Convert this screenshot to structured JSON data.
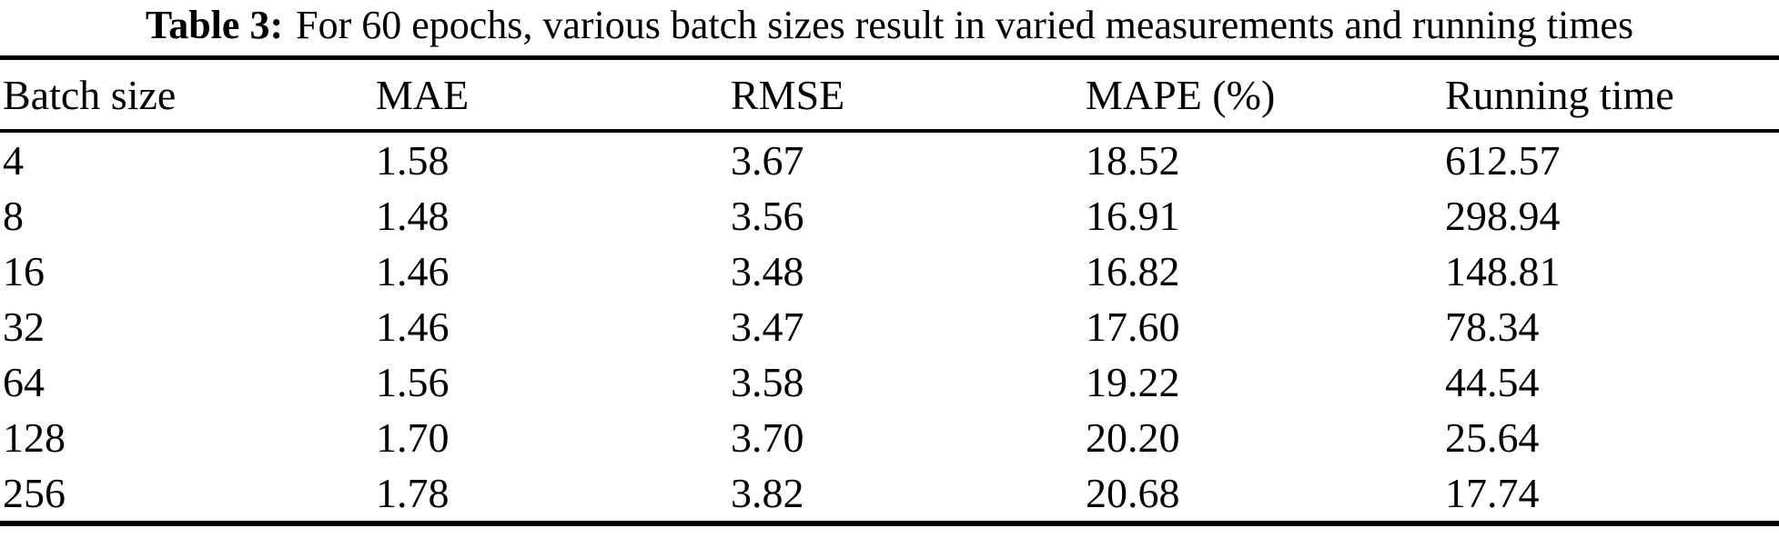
{
  "caption": {
    "label": "Table 3:",
    "text": "For 60 epochs, various batch sizes result in varied measurements and running times"
  },
  "table": {
    "headers": [
      "Batch size",
      "MAE",
      "RMSE",
      "MAPE (%)",
      "Running time"
    ],
    "rows": [
      [
        "4",
        "1.58",
        "3.67",
        "18.52",
        "612.57"
      ],
      [
        "8",
        "1.48",
        "3.56",
        "16.91",
        "298.94"
      ],
      [
        "16",
        "1.46",
        "3.48",
        "16.82",
        "148.81"
      ],
      [
        "32",
        "1.46",
        "3.47",
        "17.60",
        "78.34"
      ],
      [
        "64",
        "1.56",
        "3.58",
        "19.22",
        "44.54"
      ],
      [
        "128",
        "1.70",
        "3.70",
        "20.20",
        "25.64"
      ],
      [
        "256",
        "1.78",
        "3.82",
        "20.68",
        "17.74"
      ]
    ]
  },
  "chart_data": {
    "type": "table",
    "title": "Table 3: For 60 epochs, various batch sizes result in varied measurements and running times",
    "columns": [
      "Batch size",
      "MAE",
      "RMSE",
      "MAPE (%)",
      "Running time"
    ],
    "rows": [
      [
        4,
        1.58,
        3.67,
        18.52,
        612.57
      ],
      [
        8,
        1.48,
        3.56,
        16.91,
        298.94
      ],
      [
        16,
        1.46,
        3.48,
        16.82,
        148.81
      ],
      [
        32,
        1.46,
        3.47,
        17.6,
        78.34
      ],
      [
        64,
        1.56,
        3.58,
        19.22,
        44.54
      ],
      [
        128,
        1.7,
        3.7,
        20.2,
        25.64
      ],
      [
        256,
        1.78,
        3.82,
        20.68,
        17.74
      ]
    ]
  },
  "colors": {
    "text": "#000000",
    "background": "#ffffff",
    "rule": "#000000"
  }
}
